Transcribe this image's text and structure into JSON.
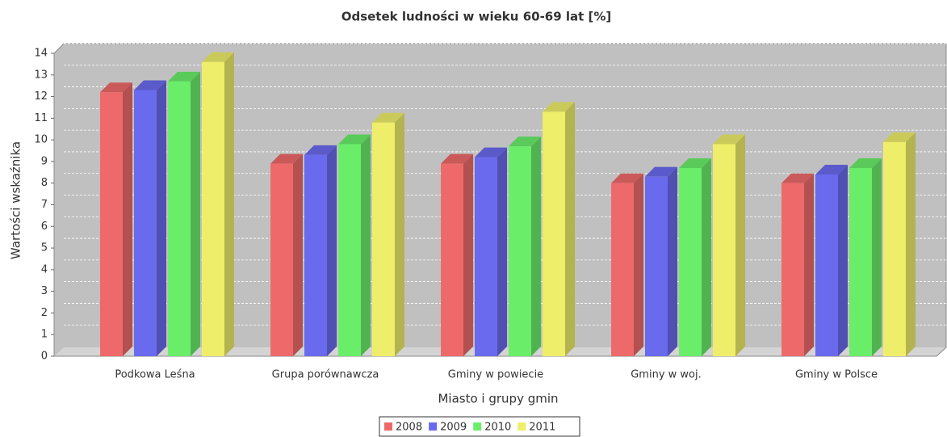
{
  "chart_data": {
    "type": "bar3d",
    "title": "Odsetek ludności w wieku 60-69 lat [%]",
    "x_label": "Miasto i grupy gmin",
    "y_label": "Wartości wskaźnika",
    "categories": [
      "Podkowa Leśna",
      "Grupa porównawcza",
      "Gminy w powiecie",
      "Gminy w woj.",
      "Gminy w Polsce"
    ],
    "series": [
      {
        "name": "2008",
        "color": "#ee6a6a",
        "values": [
          12.2,
          8.9,
          8.9,
          8.0,
          8.0
        ]
      },
      {
        "name": "2009",
        "color": "#6a6aee",
        "values": [
          12.3,
          9.3,
          9.2,
          8.3,
          8.4
        ]
      },
      {
        "name": "2010",
        "color": "#6aee6a",
        "values": [
          12.7,
          9.8,
          9.7,
          8.7,
          8.7
        ]
      },
      {
        "name": "2011",
        "color": "#eeee6a",
        "values": [
          13.6,
          10.8,
          11.3,
          9.8,
          9.9
        ]
      }
    ],
    "ylim": [
      0,
      14
    ],
    "yticks": [
      0,
      1,
      2,
      3,
      4,
      5,
      6,
      7,
      8,
      9,
      10,
      11,
      12,
      13,
      14
    ],
    "grid": true,
    "legend": "bottom"
  }
}
